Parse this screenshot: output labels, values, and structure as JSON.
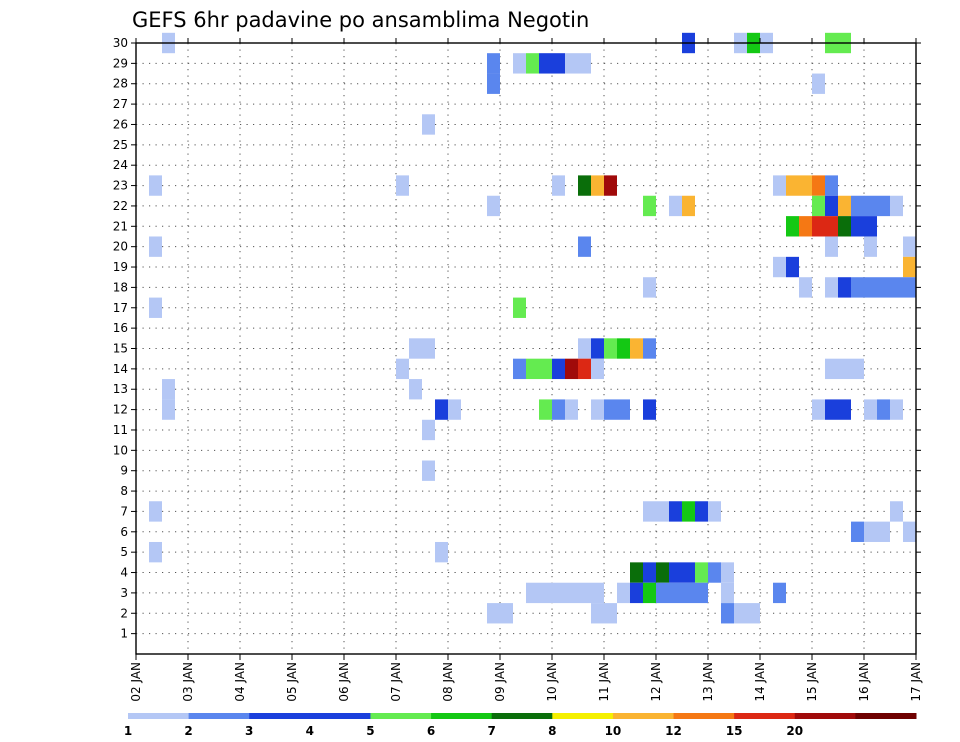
{
  "chart_data": {
    "type": "heatmap",
    "title": "GEFS 6hr padavine po ansamblima Negotin",
    "x_tick_labels": [
      "02 JAN",
      "03 JAN",
      "04 JAN",
      "05 JAN",
      "06 JAN",
      "07 JAN",
      "08 JAN",
      "09 JAN",
      "10 JAN",
      "11 JAN",
      "12 JAN",
      "13 JAN",
      "14 JAN",
      "15 JAN",
      "16 JAN",
      "17 JAN"
    ],
    "x_range": [
      "02 JAN 00Z",
      "17 JAN 00Z"
    ],
    "y_tick_labels": [
      "1",
      "2",
      "3",
      "4",
      "5",
      "6",
      "7",
      "8",
      "9",
      "10",
      "11",
      "12",
      "13",
      "14",
      "15",
      "16",
      "17",
      "18",
      "19",
      "20",
      "21",
      "22",
      "23",
      "24",
      "25",
      "26",
      "27",
      "28",
      "29",
      "30"
    ],
    "y_range": [
      0,
      30
    ],
    "grid": true,
    "time_step_hours": 6,
    "colorbar": {
      "levels": [
        "1",
        "2",
        "3",
        "4",
        "5",
        "6",
        "7",
        "8",
        "10",
        "12",
        "15",
        "20"
      ],
      "colors": [
        "#b4c7f5",
        "#5a86ee",
        "#1a3fdc",
        "#1a3fdc",
        "#64eb50",
        "#14c814",
        "#0a6e0a",
        "#f5f000",
        "#fab432",
        "#f57814",
        "#dc2814",
        "#a00a0a",
        "#6e0000"
      ]
    },
    "cells": [
      {
        "member": 30,
        "t": 8,
        "class": 1
      },
      {
        "member": 30,
        "t": 48,
        "class": 3
      },
      {
        "member": 30,
        "t": 52,
        "class": 1
      },
      {
        "member": 30,
        "t": 53,
        "class": 6
      },
      {
        "member": 30,
        "t": 54,
        "class": 1
      },
      {
        "member": 30,
        "t": 59,
        "class": 5
      },
      {
        "member": 30,
        "t": 60,
        "class": 5
      },
      {
        "member": 29,
        "t": 33,
        "class": 2
      },
      {
        "member": 29,
        "t": 35,
        "class": 1
      },
      {
        "member": 29,
        "t": 36,
        "class": 5
      },
      {
        "member": 29,
        "t": 37,
        "class": 3
      },
      {
        "member": 29,
        "t": 38,
        "class": 3
      },
      {
        "member": 29,
        "t": 39,
        "class": 1
      },
      {
        "member": 29,
        "t": 40,
        "class": 1
      },
      {
        "member": 28,
        "t": 33,
        "class": 2
      },
      {
        "member": 28,
        "t": 58,
        "class": 1
      },
      {
        "member": 26,
        "t": 28,
        "class": 1
      },
      {
        "member": 23,
        "t": 7,
        "class": 1
      },
      {
        "member": 23,
        "t": 26,
        "class": 1
      },
      {
        "member": 23,
        "t": 38,
        "class": 1
      },
      {
        "member": 23,
        "t": 40,
        "class": 7
      },
      {
        "member": 23,
        "t": 41,
        "class": 9
      },
      {
        "member": 23,
        "t": 42,
        "class": 12
      },
      {
        "member": 23,
        "t": 55,
        "class": 1
      },
      {
        "member": 23,
        "t": 56,
        "class": 9
      },
      {
        "member": 23,
        "t": 57,
        "class": 9
      },
      {
        "member": 23,
        "t": 58,
        "class": 10
      },
      {
        "member": 23,
        "t": 59,
        "class": 2
      },
      {
        "member": 22,
        "t": 33,
        "class": 1
      },
      {
        "member": 22,
        "t": 45,
        "class": 5
      },
      {
        "member": 22,
        "t": 47,
        "class": 1
      },
      {
        "member": 22,
        "t": 48,
        "class": 9
      },
      {
        "member": 22,
        "t": 58,
        "class": 5
      },
      {
        "member": 22,
        "t": 59,
        "class": 3
      },
      {
        "member": 22,
        "t": 60,
        "class": 9
      },
      {
        "member": 22,
        "t": 61,
        "class": 2
      },
      {
        "member": 22,
        "t": 62,
        "class": 2
      },
      {
        "member": 22,
        "t": 63,
        "class": 2
      },
      {
        "member": 22,
        "t": 64,
        "class": 1
      },
      {
        "member": 21,
        "t": 56,
        "class": 6
      },
      {
        "member": 21,
        "t": 57,
        "class": 10
      },
      {
        "member": 21,
        "t": 58,
        "class": 11
      },
      {
        "member": 21,
        "t": 59,
        "class": 11
      },
      {
        "member": 21,
        "t": 60,
        "class": 7
      },
      {
        "member": 21,
        "t": 61,
        "class": 3
      },
      {
        "member": 21,
        "t": 62,
        "class": 3
      },
      {
        "member": 20,
        "t": 7,
        "class": 1
      },
      {
        "member": 20,
        "t": 40,
        "class": 2
      },
      {
        "member": 20,
        "t": 59,
        "class": 1
      },
      {
        "member": 20,
        "t": 62,
        "class": 1
      },
      {
        "member": 20,
        "t": 65,
        "class": 1
      },
      {
        "member": 20,
        "t": 66,
        "class": 3
      },
      {
        "member": 19,
        "t": 55,
        "class": 1
      },
      {
        "member": 19,
        "t": 56,
        "class": 3
      },
      {
        "member": 19,
        "t": 65,
        "class": 9
      },
      {
        "member": 19,
        "t": 66,
        "class": 3
      },
      {
        "member": 18,
        "t": 45,
        "class": 1
      },
      {
        "member": 18,
        "t": 57,
        "class": 1
      },
      {
        "member": 18,
        "t": 59,
        "class": 1
      },
      {
        "member": 18,
        "t": 60,
        "class": 3
      },
      {
        "member": 18,
        "t": 61,
        "class": 2
      },
      {
        "member": 18,
        "t": 62,
        "class": 2
      },
      {
        "member": 18,
        "t": 63,
        "class": 2
      },
      {
        "member": 18,
        "t": 64,
        "class": 2
      },
      {
        "member": 18,
        "t": 65,
        "class": 2
      },
      {
        "member": 18,
        "t": 66,
        "class": 2
      },
      {
        "member": 17,
        "t": 7,
        "class": 1
      },
      {
        "member": 17,
        "t": 35,
        "class": 5
      },
      {
        "member": 17,
        "t": 66,
        "class": 3
      },
      {
        "member": 15,
        "t": 27,
        "class": 1
      },
      {
        "member": 15,
        "t": 28,
        "class": 1
      },
      {
        "member": 15,
        "t": 40,
        "class": 1
      },
      {
        "member": 15,
        "t": 41,
        "class": 3
      },
      {
        "member": 15,
        "t": 42,
        "class": 5
      },
      {
        "member": 15,
        "t": 43,
        "class": 6
      },
      {
        "member": 15,
        "t": 44,
        "class": 9
      },
      {
        "member": 15,
        "t": 45,
        "class": 2
      },
      {
        "member": 14,
        "t": 26,
        "class": 1
      },
      {
        "member": 14,
        "t": 35,
        "class": 2
      },
      {
        "member": 14,
        "t": 36,
        "class": 5
      },
      {
        "member": 14,
        "t": 37,
        "class": 5
      },
      {
        "member": 14,
        "t": 38,
        "class": 3
      },
      {
        "member": 14,
        "t": 39,
        "class": 12
      },
      {
        "member": 14,
        "t": 40,
        "class": 11
      },
      {
        "member": 14,
        "t": 41,
        "class": 1
      },
      {
        "member": 14,
        "t": 59,
        "class": 1
      },
      {
        "member": 14,
        "t": 60,
        "class": 1
      },
      {
        "member": 14,
        "t": 61,
        "class": 1
      },
      {
        "member": 13,
        "t": 8,
        "class": 1
      },
      {
        "member": 13,
        "t": 27,
        "class": 1
      },
      {
        "member": 12,
        "t": 8,
        "class": 1
      },
      {
        "member": 12,
        "t": 29,
        "class": 3
      },
      {
        "member": 12,
        "t": 30,
        "class": 1
      },
      {
        "member": 12,
        "t": 37,
        "class": 5
      },
      {
        "member": 12,
        "t": 38,
        "class": 2
      },
      {
        "member": 12,
        "t": 39,
        "class": 1
      },
      {
        "member": 12,
        "t": 41,
        "class": 1
      },
      {
        "member": 12,
        "t": 42,
        "class": 2
      },
      {
        "member": 12,
        "t": 43,
        "class": 2
      },
      {
        "member": 12,
        "t": 45,
        "class": 3
      },
      {
        "member": 12,
        "t": 58,
        "class": 1
      },
      {
        "member": 12,
        "t": 59,
        "class": 3
      },
      {
        "member": 12,
        "t": 60,
        "class": 3
      },
      {
        "member": 12,
        "t": 62,
        "class": 1
      },
      {
        "member": 12,
        "t": 63,
        "class": 2
      },
      {
        "member": 12,
        "t": 64,
        "class": 1
      },
      {
        "member": 11,
        "t": 28,
        "class": 1
      },
      {
        "member": 9,
        "t": 28,
        "class": 1
      },
      {
        "member": 7,
        "t": 7,
        "class": 1
      },
      {
        "member": 7,
        "t": 45,
        "class": 1
      },
      {
        "member": 7,
        "t": 46,
        "class": 1
      },
      {
        "member": 7,
        "t": 47,
        "class": 3
      },
      {
        "member": 7,
        "t": 48,
        "class": 6
      },
      {
        "member": 7,
        "t": 49,
        "class": 3
      },
      {
        "member": 7,
        "t": 50,
        "class": 1
      },
      {
        "member": 7,
        "t": 64,
        "class": 1
      },
      {
        "member": 6,
        "t": 61,
        "class": 2
      },
      {
        "member": 6,
        "t": 62,
        "class": 1
      },
      {
        "member": 6,
        "t": 63,
        "class": 1
      },
      {
        "member": 6,
        "t": 65,
        "class": 1
      },
      {
        "member": 6,
        "t": 66,
        "class": 2
      },
      {
        "member": 5,
        "t": 7,
        "class": 1
      },
      {
        "member": 5,
        "t": 29,
        "class": 1
      },
      {
        "member": 4,
        "t": 44,
        "class": 7
      },
      {
        "member": 4,
        "t": 45,
        "class": 3
      },
      {
        "member": 4,
        "t": 46,
        "class": 7
      },
      {
        "member": 4,
        "t": 47,
        "class": 3
      },
      {
        "member": 4,
        "t": 48,
        "class": 3
      },
      {
        "member": 4,
        "t": 49,
        "class": 5
      },
      {
        "member": 4,
        "t": 50,
        "class": 2
      },
      {
        "member": 4,
        "t": 51,
        "class": 1
      },
      {
        "member": 3,
        "t": 36,
        "class": 1
      },
      {
        "member": 3,
        "t": 37,
        "class": 1
      },
      {
        "member": 3,
        "t": 38,
        "class": 1
      },
      {
        "member": 3,
        "t": 39,
        "class": 1
      },
      {
        "member": 3,
        "t": 40,
        "class": 1
      },
      {
        "member": 3,
        "t": 41,
        "class": 1
      },
      {
        "member": 3,
        "t": 43,
        "class": 1
      },
      {
        "member": 3,
        "t": 44,
        "class": 3
      },
      {
        "member": 3,
        "t": 45,
        "class": 6
      },
      {
        "member": 3,
        "t": 46,
        "class": 2
      },
      {
        "member": 3,
        "t": 47,
        "class": 2
      },
      {
        "member": 3,
        "t": 48,
        "class": 2
      },
      {
        "member": 3,
        "t": 49,
        "class": 2
      },
      {
        "member": 3,
        "t": 51,
        "class": 1
      },
      {
        "member": 3,
        "t": 55,
        "class": 2
      },
      {
        "member": 2,
        "t": 33,
        "class": 1
      },
      {
        "member": 2,
        "t": 34,
        "class": 1
      },
      {
        "member": 2,
        "t": 41,
        "class": 1
      },
      {
        "member": 2,
        "t": 42,
        "class": 1
      },
      {
        "member": 2,
        "t": 51,
        "class": 2
      },
      {
        "member": 2,
        "t": 52,
        "class": 1
      },
      {
        "member": 2,
        "t": 53,
        "class": 1
      }
    ]
  }
}
